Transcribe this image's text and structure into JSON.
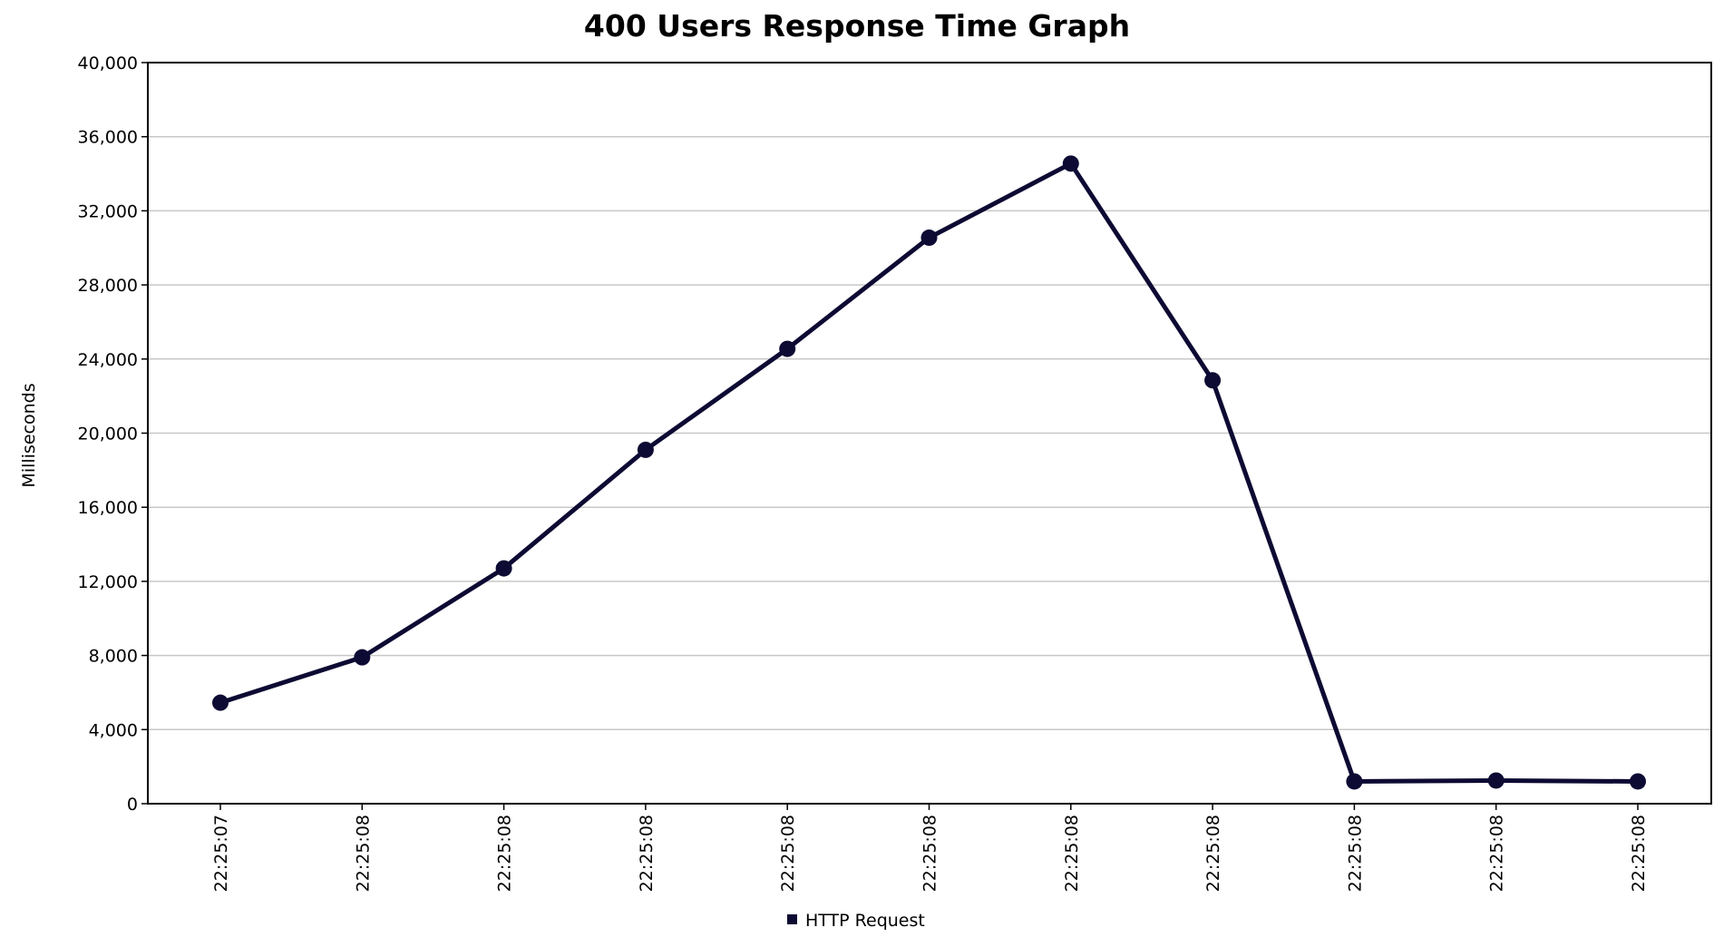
{
  "chart_data": {
    "type": "line",
    "title": "400 Users Response Time Graph",
    "xlabel": "",
    "ylabel": "Milliseconds",
    "categories": [
      "22:25:07",
      "22:25:08",
      "22:25:08",
      "22:25:08",
      "22:25:08",
      "22:25:08",
      "22:25:08",
      "22:25:08",
      "22:25:08",
      "22:25:08",
      "22:25:08"
    ],
    "yticks": [
      "0",
      "4,000",
      "8,000",
      "12,000",
      "16,000",
      "20,000",
      "24,000",
      "28,000",
      "32,000",
      "36,000",
      "40,000"
    ],
    "ylim": [
      0,
      40000
    ],
    "grid": true,
    "legend_position": "bottom",
    "series": [
      {
        "name": "HTTP Request",
        "color": "#0d0a33",
        "values": [
          5450,
          7900,
          12700,
          19100,
          24550,
          30550,
          34550,
          22850,
          1200,
          1250,
          1200
        ]
      }
    ]
  }
}
